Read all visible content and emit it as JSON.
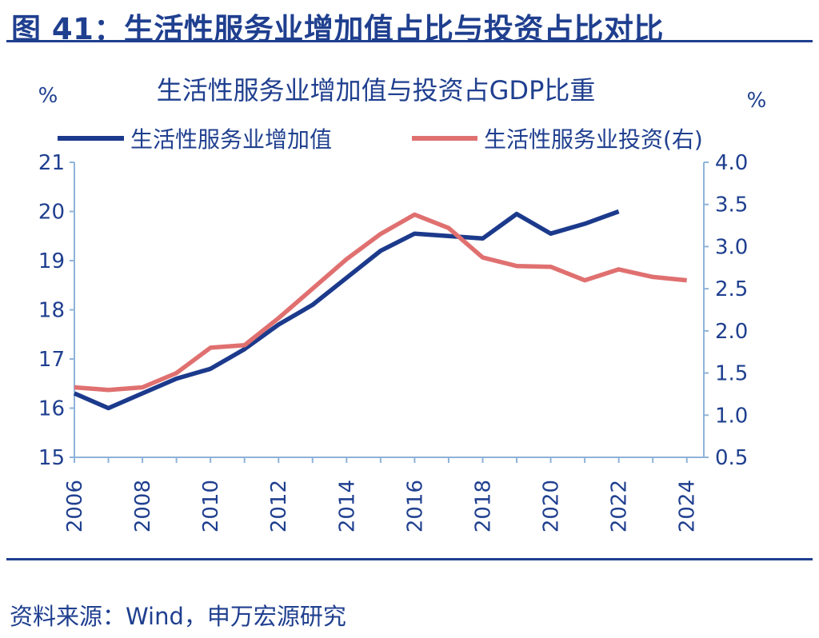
{
  "figure_title": "图 41：生活性服务业增加值占比与投资占比对比",
  "source": "资料来源：Wind，申万宏源研究",
  "colors": {
    "primary": "#1f3f8f",
    "series_left": "#1c3a8c",
    "series_right": "#e07070",
    "axis_right": "#8fb3d9"
  },
  "chart_data": {
    "type": "line",
    "title": "生活性服务业增加值与投资占GDP比重",
    "ylabel_left": "%",
    "ylabel_right": "%",
    "ylim_left": [
      15,
      21
    ],
    "ylim_right": [
      0.5,
      4.0
    ],
    "yticks_left": [
      "21",
      "20",
      "19",
      "18",
      "17",
      "16",
      "15"
    ],
    "yticks_right": [
      "4.0",
      "3.5",
      "3.0",
      "2.5",
      "2.0",
      "1.5",
      "1.0",
      "0.5"
    ],
    "xticks": [
      "2006",
      "2008",
      "2010",
      "2012",
      "2014",
      "2016",
      "2018",
      "2020",
      "2022",
      "2024"
    ],
    "legend_position": "top",
    "series": [
      {
        "name": "生活性服务业增加值",
        "axis": "left",
        "x": [
          2006,
          2007,
          2008,
          2009,
          2010,
          2011,
          2012,
          2013,
          2014,
          2015,
          2016,
          2017,
          2018,
          2019,
          2020,
          2021,
          2022
        ],
        "values": [
          16.3,
          16.0,
          16.3,
          16.6,
          16.8,
          17.2,
          17.7,
          18.1,
          18.65,
          19.2,
          19.55,
          19.5,
          19.45,
          19.95,
          19.55,
          19.75,
          20.0
        ]
      },
      {
        "name": "生活性服务业投资(右)",
        "axis": "right",
        "x": [
          2006,
          2007,
          2008,
          2009,
          2010,
          2011,
          2012,
          2013,
          2014,
          2015,
          2016,
          2017,
          2018,
          2019,
          2020,
          2021,
          2022,
          2023,
          2024
        ],
        "values": [
          1.33,
          1.3,
          1.33,
          1.5,
          1.8,
          1.83,
          2.15,
          2.5,
          2.85,
          3.15,
          3.38,
          3.22,
          2.87,
          2.77,
          2.76,
          2.6,
          2.73,
          2.64,
          2.6
        ]
      }
    ]
  }
}
